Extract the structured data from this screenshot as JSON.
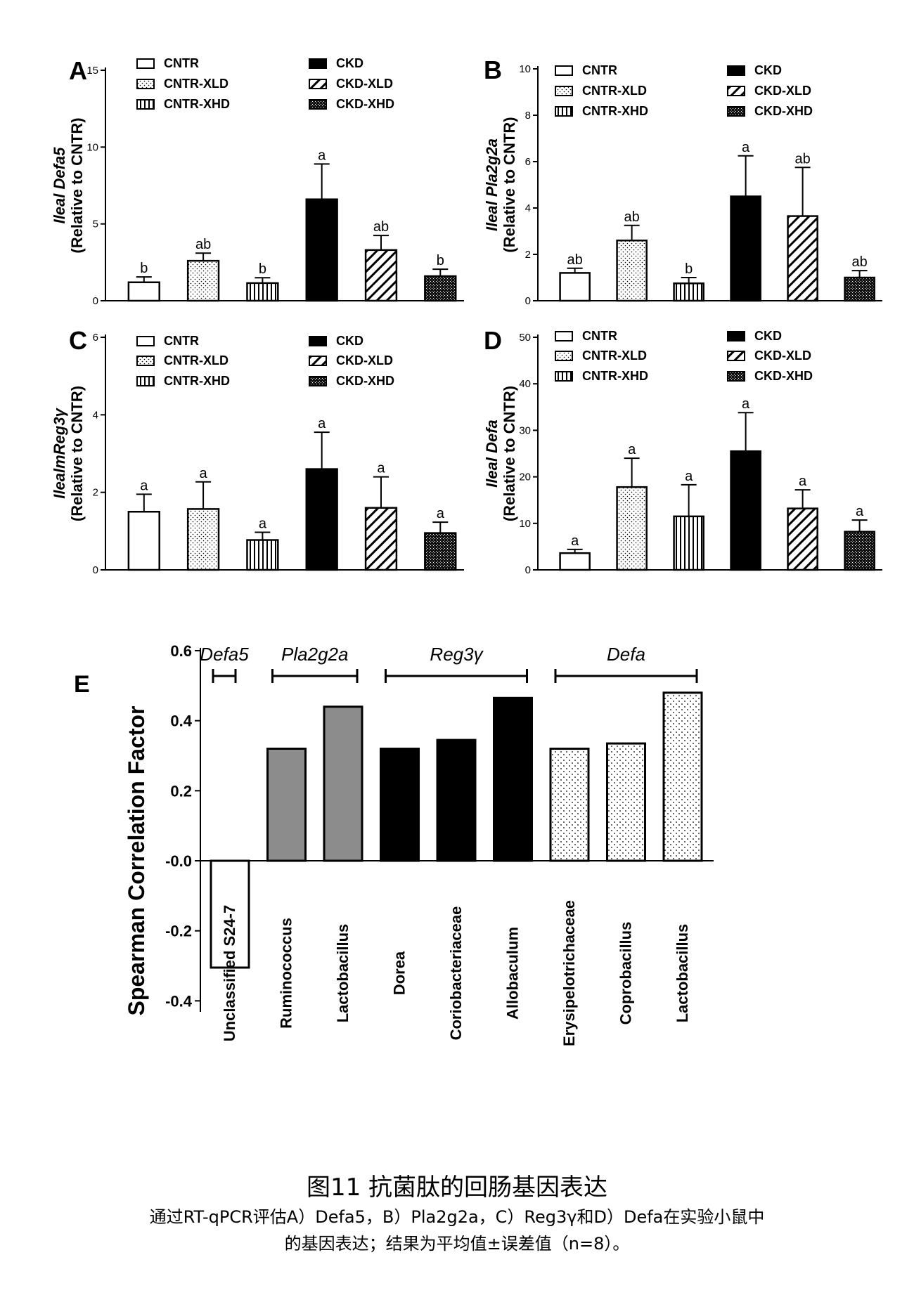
{
  "chart_data": [
    {
      "panel": "A",
      "type": "bar",
      "ylabel": [
        "Ileal Defa5",
        "(Relative to CNTR)"
      ],
      "ylim": [
        0,
        15
      ],
      "yticks": [
        "0",
        "5",
        "10",
        "15"
      ],
      "categories": [
        "CNTR",
        "CNTR-XLD",
        "CNTR-XHD",
        "CKD",
        "CKD-XLD",
        "CKD-XHD"
      ],
      "values": [
        1.2,
        2.6,
        1.15,
        6.6,
        3.3,
        1.6
      ],
      "errors": [
        0.35,
        0.5,
        0.35,
        2.3,
        0.95,
        0.45
      ],
      "letters": [
        "b",
        "ab",
        "b",
        "a",
        "ab",
        "b"
      ]
    },
    {
      "panel": "B",
      "type": "bar",
      "ylabel": [
        "Ileal Pla2g2a",
        "(Relative to CNTR)"
      ],
      "ylim": [
        0,
        10
      ],
      "yticks": [
        "0",
        "2",
        "4",
        "6",
        "8",
        "10"
      ],
      "categories": [
        "CNTR",
        "CNTR-XLD",
        "CNTR-XHD",
        "CKD",
        "CKD-XLD",
        "CKD-XHD"
      ],
      "values": [
        1.2,
        2.6,
        0.75,
        4.5,
        3.65,
        1.0
      ],
      "errors": [
        0.2,
        0.65,
        0.25,
        1.75,
        2.1,
        0.3
      ],
      "letters": [
        "ab",
        "ab",
        "b",
        "a",
        "ab",
        "ab"
      ]
    },
    {
      "panel": "C",
      "type": "bar",
      "ylabel": [
        "IlealmReg3γ",
        "(Relative to CNTR)"
      ],
      "ylim": [
        0,
        6
      ],
      "yticks": [
        "0",
        "2",
        "4",
        "6"
      ],
      "categories": [
        "CNTR",
        "CNTR-XLD",
        "CNTR-XHD",
        "CKD",
        "CKD-XLD",
        "CKD-XHD"
      ],
      "values": [
        1.5,
        1.57,
        0.77,
        2.6,
        1.6,
        0.95
      ],
      "errors": [
        0.45,
        0.7,
        0.2,
        0.95,
        0.8,
        0.28
      ],
      "letters": [
        "a",
        "a",
        "a",
        "a",
        "a",
        "a"
      ]
    },
    {
      "panel": "D",
      "type": "bar",
      "ylabel": [
        "Ileal Defa",
        "(Relative to CNTR)"
      ],
      "ylim": [
        0,
        50
      ],
      "yticks": [
        "0",
        "10",
        "20",
        "30",
        "40",
        "50"
      ],
      "categories": [
        "CNTR",
        "CNTR-XLD",
        "CNTR-XHD",
        "CKD",
        "CKD-XLD",
        "CKD-XHD"
      ],
      "values": [
        3.6,
        17.8,
        11.5,
        25.5,
        13.2,
        8.2
      ],
      "errors": [
        0.8,
        6.2,
        6.8,
        8.3,
        4.0,
        2.5
      ],
      "letters": [
        "a",
        "a",
        "a",
        "a",
        "a",
        "a"
      ]
    },
    {
      "panel": "E",
      "type": "bar",
      "ylabel": "Spearman Correlation Factor",
      "ylim": [
        -0.45,
        0.6
      ],
      "yticks": [
        "0.6",
        "0.4",
        "0.2",
        "-0.0",
        "-0.2",
        "-0.4"
      ],
      "categories": [
        "Unclassified S24-7",
        "Ruminococcus",
        "Lactobacillus",
        "Dorea",
        "Coriobacteriaceae",
        "Allobaculum",
        "Erysipelotrichaceae",
        "Coprobacillus",
        "Lactobacillus"
      ],
      "values": [
        -0.305,
        0.32,
        0.44,
        0.32,
        0.345,
        0.465,
        0.32,
        0.335,
        0.48
      ],
      "groups": [
        {
          "name": "Defa5",
          "from": 0,
          "to": 0
        },
        {
          "name": "Pla2g2a",
          "from": 1,
          "to": 2
        },
        {
          "name": "Reg3γ",
          "from": 3,
          "to": 5
        },
        {
          "name": "Defa",
          "from": 6,
          "to": 8
        }
      ],
      "fills": [
        "white",
        "gray",
        "gray",
        "black",
        "black",
        "black",
        "dots",
        "dots",
        "dots"
      ]
    }
  ],
  "legend": {
    "labels": [
      "CNTR",
      "CNTR-XLD",
      "CNTR-XHD",
      "CKD",
      "CKD-XLD",
      "CKD-XHD"
    ],
    "patterns": [
      "white",
      "dots",
      "vlines",
      "black",
      "diag",
      "dense"
    ]
  },
  "colors": {
    "bar_black": "#000000",
    "bar_gray": "#8c8c8c",
    "bar_white": "#ffffff"
  },
  "caption": {
    "title": "图11 抗菌肽的回肠基因表达",
    "line1": "通过RT-qPCR评估A）Defa5，B）Pla2g2a，C）Reg3γ和D）Defa在实验小鼠中",
    "line2": "的基因表达；结果为平均值±误差值（n=8）。"
  }
}
